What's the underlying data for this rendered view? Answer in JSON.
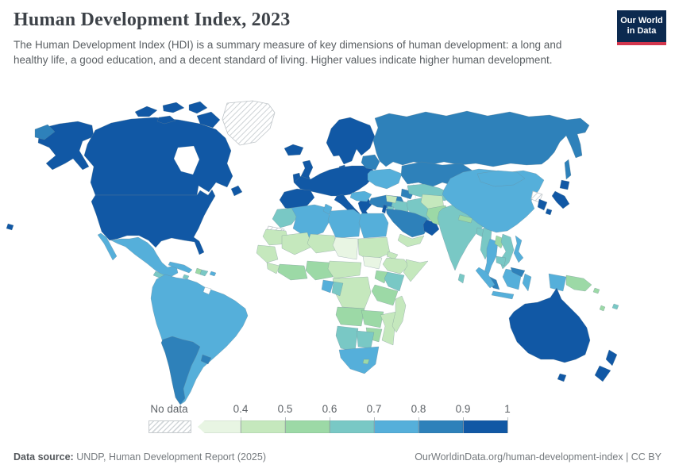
{
  "header": {
    "title": "Human Development Index, 2023",
    "subtitle": "The Human Development Index (HDI) is a summary measure of key dimensions of human development: a long and healthy life, a good education, and a decent standard of living. Higher values indicate higher human development.",
    "logo": {
      "line1": "Our World",
      "line2": "in Data",
      "bg_color": "#0c2a50",
      "accent_color": "#d2364d"
    }
  },
  "footer": {
    "source_label": "Data source:",
    "source_text": " UNDP, Human Development Report (2025)",
    "right_text": "OurWorldinData.org/human-development-index | CC BY"
  },
  "chart_data": {
    "type": "heatmap",
    "subtype": "choropleth-world-map",
    "title": "Human Development Index, 2023",
    "metric": "Human Development Index",
    "year": 2023,
    "legend_position": "bottom-left",
    "legend": {
      "no_data_label": "No data",
      "tick_labels": [
        "0.4",
        "0.5",
        "0.6",
        "0.7",
        "0.8",
        "0.9",
        "1"
      ],
      "bins": [
        {
          "id": "lt-0.4",
          "label": "Below 0.4",
          "color": "#e8f5e3"
        },
        {
          "id": "0.4-0.5",
          "label": "0.4 to 0.5",
          "color": "#c5e8bd"
        },
        {
          "id": "0.5-0.6",
          "label": "0.5 to 0.6",
          "color": "#9cd9a6"
        },
        {
          "id": "0.6-0.7",
          "label": "0.6 to 0.7",
          "color": "#79c8c5"
        },
        {
          "id": "0.7-0.8",
          "label": "0.7 to 0.8",
          "color": "#55afda"
        },
        {
          "id": "0.8-0.9",
          "label": "0.8 to 0.9",
          "color": "#2e81ba"
        },
        {
          "id": "0.9-1",
          "label": "0.9 to 1",
          "color": "#1158a5"
        }
      ]
    },
    "regions": {
      "alaska": "0.9-1",
      "hawaii": "0.9-1",
      "chukotka": "0.8-0.9",
      "canada": "0.9-1",
      "canada-arctic-a": "0.9-1",
      "canada-arctic-b": "0.9-1",
      "canada-arctic-c": "0.9-1",
      "canada-arctic-d": "0.9-1",
      "baffin": "0.9-1",
      "newfoundland": "0.9-1",
      "greenland": "no-data",
      "usa": "0.9-1",
      "baja": "0.7-0.8",
      "mexico": "0.7-0.8",
      "guatemala": "0.6-0.7",
      "nicaragua": "0.6-0.7",
      "panama": "0.8-0.9",
      "cuba": "0.7-0.8",
      "haiti": "0.5-0.6",
      "dominican-republic": "0.6-0.7",
      "jamaica": "0.6-0.7",
      "puerto-rico": "0.7-0.8",
      "south-america": "0.7-0.8",
      "argentina-chile": "0.8-0.9",
      "uruguay": "0.8-0.9",
      "french-guiana": "blank",
      "iceland": "0.9-1",
      "united-kingdom": "0.9-1",
      "ireland": "0.9-1",
      "scandinavia": "0.9-1",
      "denmark": "0.9-1",
      "western-europe": "0.9-1",
      "iberia": "0.9-1",
      "italy": "0.9-1",
      "sicily": "0.9-1",
      "greece": "0.9-1",
      "balkans": "0.7-0.8",
      "ukraine": "0.7-0.8",
      "belarus-baltics": "0.8-0.9",
      "russia": "0.8-0.9",
      "sakhalin": "0.8-0.9",
      "turkey": "0.8-0.9",
      "caucasus": "0.8-0.9",
      "kazakhstan": "0.8-0.9",
      "central-asia": "0.6-0.7",
      "iran": "0.6-0.7",
      "iraq": "0.6-0.7",
      "syria": "0.4-0.5",
      "israel": "0.9-1",
      "jordan": "0.6-0.7",
      "saudi-arabia": "0.8-0.9",
      "uae-oman": "0.9-1",
      "yemen": "0.4-0.5",
      "morocco": "0.6-0.7",
      "western-sahara": "no-data",
      "algeria": "0.7-0.8",
      "tunisia": "0.7-0.8",
      "libya": "0.7-0.8",
      "egypt": "0.7-0.8",
      "mauritania": "0.4-0.5",
      "mali": "0.4-0.5",
      "niger": "0.4-0.5",
      "chad": "lt-0.4",
      "sudan": "0.4-0.5",
      "eritrea": "0.4-0.5",
      "ethiopia": "0.4-0.5",
      "somalia": "0.4-0.5",
      "south-sudan": "lt-0.4",
      "senegal-guinea": "0.4-0.5",
      "sierra-leone-liberia": "0.4-0.5",
      "cote-divoire-ghana": "0.5-0.6",
      "nigeria": "0.5-0.6",
      "cameroon-car": "0.4-0.5",
      "uganda": "0.5-0.6",
      "kenya": "0.6-0.7",
      "drc": "0.4-0.5",
      "gabon": "0.7-0.8",
      "congo": "0.6-0.7",
      "tanzania": "0.5-0.6",
      "angola": "0.5-0.6",
      "zambia": "0.5-0.6",
      "mozambique": "0.4-0.5",
      "zimbabwe": "0.5-0.6",
      "namibia": "0.6-0.7",
      "botswana": "0.6-0.7",
      "south-africa": "0.7-0.8",
      "lesotho": "0.5-0.6",
      "madagascar": "0.4-0.5",
      "afghanistan": "0.4-0.5",
      "pakistan": "0.5-0.6",
      "india": "0.6-0.7",
      "nepal": "0.5-0.6",
      "bangladesh": "0.6-0.7",
      "sri-lanka": "0.6-0.7",
      "myanmar": "0.6-0.7",
      "thailand": "0.7-0.8",
      "laos": "0.5-0.6",
      "vietnam": "0.6-0.7",
      "cambodia": "0.6-0.7",
      "malaysia-peninsula": "0.8-0.9",
      "china": "0.7-0.8",
      "mongolia": "0.7-0.8",
      "north-korea": "no-data",
      "south-korea": "0.9-1",
      "japan-hokkaido": "0.9-1",
      "japan-honshu": "0.9-1",
      "japan-kyushu": "0.9-1",
      "philippines": "0.7-0.8",
      "sumatra": "0.7-0.8",
      "java": "0.7-0.8",
      "kalimantan": "0.7-0.8",
      "malaysia-borneo": "0.8-0.9",
      "sulawesi": "0.7-0.8",
      "west-papua": "0.7-0.8",
      "papua-new-guinea": "0.5-0.6",
      "solomon-islands": "0.5-0.6",
      "vanuatu": "0.5-0.6",
      "fiji": "0.6-0.7",
      "australia": "0.9-1",
      "tasmania": "0.9-1",
      "new-zealand-north": "0.9-1",
      "new-zealand-south": "0.9-1"
    }
  }
}
